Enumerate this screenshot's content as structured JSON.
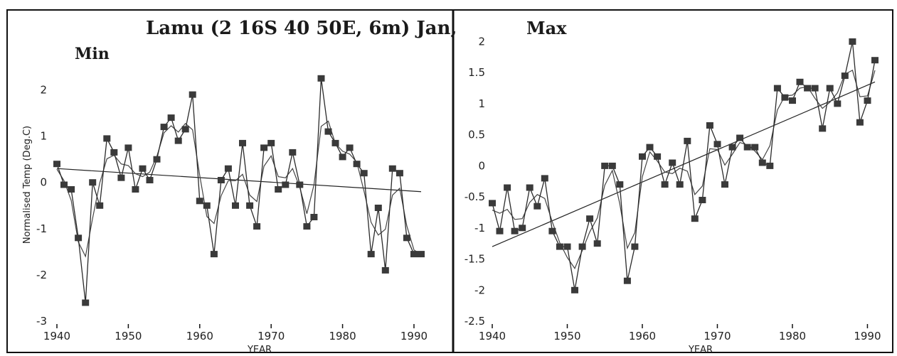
{
  "figure": {
    "title": "Lamu (2 16S 40 50E, 6m) Jan,",
    "left_title": "Min",
    "right_title": "Max"
  },
  "chart_data": [
    {
      "type": "line",
      "title": "Min",
      "xlabel": "YEAR",
      "ylabel": "Normalised Temp (Deg.C)",
      "xlim": [
        1940,
        1991
      ],
      "ylim": [
        -3,
        2.5
      ],
      "x_ticks": [
        "1940",
        "1950",
        "1960",
        "1970",
        "1980",
        "1990"
      ],
      "y_ticks": [
        "-3",
        "-2",
        "-1",
        "0",
        "1",
        "2"
      ],
      "grid": false,
      "x": [
        1940,
        1941,
        1942,
        1943,
        1944,
        1945,
        1946,
        1947,
        1948,
        1949,
        1950,
        1951,
        1952,
        1953,
        1954,
        1955,
        1956,
        1957,
        1958,
        1959,
        1960,
        1961,
        1962,
        1963,
        1964,
        1965,
        1966,
        1967,
        1968,
        1969,
        1970,
        1971,
        1972,
        1973,
        1974,
        1975,
        1976,
        1977,
        1978,
        1979,
        1980,
        1981,
        1982,
        1983,
        1984,
        1985,
        1986,
        1987,
        1988,
        1989,
        1990,
        1991
      ],
      "series": [
        {
          "values": [
            0.4,
            -0.05,
            -0.15,
            -1.2,
            -2.6,
            0.0,
            -0.5,
            0.95,
            0.65,
            0.1,
            0.75,
            -0.15,
            0.3,
            0.05,
            0.5,
            1.2,
            1.4,
            0.9,
            1.15,
            1.9,
            -0.4,
            -0.5,
            -1.55,
            0.05,
            0.3,
            -0.5,
            0.85,
            -0.5,
            -0.95,
            0.75,
            0.85,
            -0.15,
            -0.05,
            0.65,
            -0.05,
            -0.95,
            -0.75,
            2.25,
            1.1,
            0.85,
            0.55,
            0.75,
            0.4,
            0.2,
            -1.55,
            -0.55,
            -1.9,
            0.3,
            0.2,
            -1.2,
            -1.55,
            -1.55
          ]
        }
      ],
      "trend": {
        "x": [
          1940,
          1991
        ],
        "y": [
          0.3,
          -0.2
        ]
      }
    },
    {
      "type": "line",
      "title": "Max",
      "xlabel": "YEAR",
      "ylabel": "",
      "xlim": [
        1940,
        1991
      ],
      "ylim": [
        -2.5,
        2.2
      ],
      "x_ticks": [
        "1940",
        "1950",
        "1960",
        "1970",
        "1980",
        "1990"
      ],
      "y_ticks": [
        "-2.5",
        "-2",
        "-1.5",
        "-1",
        "-0.5",
        "0",
        "0.5",
        "1",
        "1.5",
        "2"
      ],
      "grid": false,
      "x": [
        1940,
        1941,
        1942,
        1943,
        1944,
        1945,
        1946,
        1947,
        1948,
        1949,
        1950,
        1951,
        1952,
        1953,
        1954,
        1955,
        1956,
        1957,
        1958,
        1959,
        1960,
        1961,
        1962,
        1963,
        1964,
        1965,
        1966,
        1967,
        1968,
        1969,
        1970,
        1971,
        1972,
        1973,
        1974,
        1975,
        1976,
        1977,
        1978,
        1979,
        1980,
        1981,
        1982,
        1983,
        1984,
        1985,
        1986,
        1987,
        1988,
        1989,
        1990,
        1991
      ],
      "series": [
        {
          "values": [
            -0.6,
            -1.05,
            -0.35,
            -1.05,
            -1.0,
            -0.35,
            -0.65,
            -0.2,
            -1.05,
            -1.3,
            -1.3,
            -2.0,
            -1.3,
            -0.85,
            -1.25,
            0.0,
            0.0,
            -0.3,
            -1.85,
            -1.3,
            0.15,
            0.3,
            0.15,
            -0.3,
            0.05,
            -0.3,
            0.4,
            -0.85,
            -0.55,
            0.65,
            0.35,
            -0.3,
            0.3,
            0.45,
            0.3,
            0.3,
            0.05,
            0.0,
            1.25,
            1.1,
            1.05,
            1.35,
            1.25,
            1.25,
            0.6,
            1.25,
            1.0,
            1.45,
            2.0,
            0.7,
            1.05,
            1.7
          ]
        }
      ],
      "trend": {
        "x": [
          1940,
          1991
        ],
        "y": [
          -1.3,
          1.35
        ]
      }
    }
  ]
}
